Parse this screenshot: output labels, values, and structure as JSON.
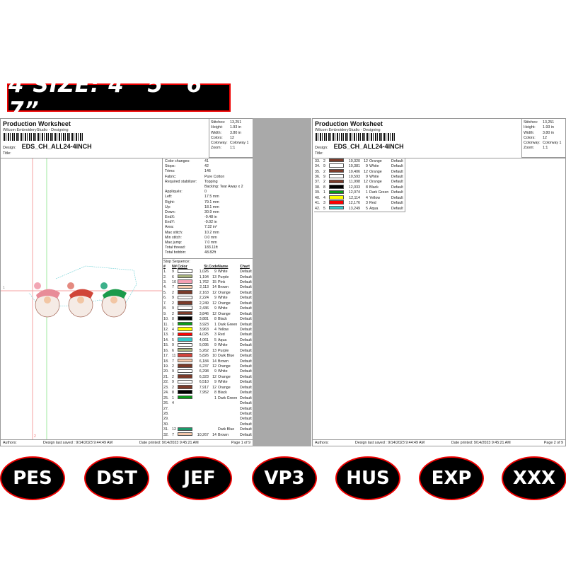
{
  "banner": "4 SIZE: 4” 5” 6” 7”",
  "formats": [
    "PES",
    "DST",
    "JEF",
    "VP3",
    "HUS",
    "EXP",
    "XXX"
  ],
  "worksheet": {
    "title": "Production Worksheet",
    "subtitle": "Wilcom EmbroideryStudio - Designing",
    "design_label": "Design:",
    "design_name": "EDS_CH_ALL24-4INCH",
    "title_label": "Title:"
  },
  "stats": [
    {
      "k": "Stitches:",
      "v": "13,251"
    },
    {
      "k": "Height:",
      "v": "1.93 in"
    },
    {
      "k": "Width:",
      "v": "3.80 in"
    },
    {
      "k": "Colors:",
      "v": "12"
    },
    {
      "k": "Colorway:",
      "v": "Colorway 1"
    },
    {
      "k": "Zoom:",
      "v": "1:1"
    }
  ],
  "info": [
    {
      "k": "Color changes:",
      "v": "41"
    },
    {
      "k": "Stops:",
      "v": "42"
    },
    {
      "k": "Trims:",
      "v": "146"
    },
    {
      "k": "Fabric:",
      "v": "Pure Cotton"
    },
    {
      "k": "Required stabilizer:",
      "v": "Topping"
    },
    {
      "k": "",
      "v": "Backing: Tear Away x 2"
    },
    {
      "k": "Appliqués:",
      "v": "0"
    },
    {
      "k": "Left:",
      "v": "17.5 mm"
    },
    {
      "k": "Right:",
      "v": "79.1 mm"
    },
    {
      "k": "Up:",
      "v": "18.1 mm"
    },
    {
      "k": "Down:",
      "v": "30.9 mm"
    },
    {
      "k": "EndX:",
      "v": "-0.48 in"
    },
    {
      "k": "EndY:",
      "v": "-0.02 in"
    },
    {
      "k": "Area:",
      "v": "7.32 in²"
    },
    {
      "k": "Max stitch:",
      "v": "10.2 mm"
    },
    {
      "k": "Min stitch:",
      "v": "0.0 mm"
    },
    {
      "k": "Max jump:",
      "v": "7.0 mm"
    },
    {
      "k": "Total thread:",
      "v": "183.11ft"
    },
    {
      "k": "Total bobbin:",
      "v": "48.82ft"
    }
  ],
  "stop_sequence": {
    "label": "Stop Sequence:",
    "headers": [
      "#",
      "N#",
      "Color",
      "St.",
      "Code",
      "Name",
      "Chart"
    ],
    "rows": [
      [
        "1.",
        "9",
        "#ffffff",
        "1,026",
        "9",
        "White",
        "Default"
      ],
      [
        "2.",
        "6",
        "#a9b47e",
        "1,194",
        "13",
        "Purple",
        "Default"
      ],
      [
        "3.",
        "10",
        "#f5a0b4",
        "1,762",
        "15",
        "Pink",
        "Default"
      ],
      [
        "4.",
        "7",
        "#f6c8aa",
        "2,113",
        "14",
        "Brown",
        "Default"
      ],
      [
        "5.",
        "2",
        "#7b3b2a",
        "2,163",
        "12",
        "Orange",
        "Default"
      ],
      [
        "6.",
        "9",
        "#ffffff",
        "2,224",
        "9",
        "White",
        "Default"
      ],
      [
        "7.",
        "2",
        "#7b3b2a",
        "2,249",
        "12",
        "Orange",
        "Default"
      ],
      [
        "8.",
        "9",
        "#ffffff",
        "2,436",
        "9",
        "White",
        "Default"
      ],
      [
        "9.",
        "2",
        "#7b3b2a",
        "3,846",
        "12",
        "Orange",
        "Default"
      ],
      [
        "10.",
        "8",
        "#000000",
        "3,881",
        "8",
        "Black",
        "Default"
      ],
      [
        "11.",
        "1",
        "#0a9a18",
        "3,923",
        "1",
        "Dark Green",
        "Default"
      ],
      [
        "12.",
        "4",
        "#ffff00",
        "3,963",
        "4",
        "Yellow",
        "Default"
      ],
      [
        "13.",
        "3",
        "#ff0000",
        "4,025",
        "3",
        "Red",
        "Default"
      ],
      [
        "14.",
        "5",
        "#33c7c9",
        "4,061",
        "5",
        "Aqua",
        "Default"
      ],
      [
        "15.",
        "9",
        "#ffffff",
        "5,095",
        "9",
        "White",
        "Default"
      ],
      [
        "16.",
        "6",
        "#a9b47e",
        "5,262",
        "13",
        "Purple",
        "Default"
      ],
      [
        "17.",
        "11",
        "#d2443c",
        "5,826",
        "10",
        "Dark Blue",
        "Default"
      ],
      [
        "18.",
        "7",
        "#f6c8aa",
        "6,184",
        "14",
        "Brown",
        "Default"
      ],
      [
        "19.",
        "2",
        "#7b3b2a",
        "6,237",
        "12",
        "Orange",
        "Default"
      ],
      [
        "20.",
        "9",
        "#ffffff",
        "6,298",
        "9",
        "White",
        "Default"
      ],
      [
        "21.",
        "2",
        "#7b3b2a",
        "6,323",
        "12",
        "Orange",
        "Default"
      ],
      [
        "22.",
        "9",
        "#ffffff",
        "6,510",
        "9",
        "White",
        "Default"
      ],
      [
        "23.",
        "2",
        "#7b3b2a",
        "7,917",
        "12",
        "Orange",
        "Default"
      ],
      [
        "24.",
        "8",
        "#000000",
        "7,952",
        "8",
        "Black",
        "Default"
      ],
      [
        "25.",
        "1",
        "#0a9a18",
        "",
        "1",
        "Dark Green",
        "Default"
      ],
      [
        "26.",
        "4",
        "",
        "",
        "",
        "",
        "Default"
      ],
      [
        "27.",
        "",
        "",
        "",
        "",
        "",
        "Default"
      ],
      [
        "28.",
        "",
        "",
        "",
        "",
        "",
        "Default"
      ],
      [
        "29.",
        "",
        "",
        "",
        "",
        "",
        "Default"
      ],
      [
        "30.",
        "",
        "",
        "",
        "",
        "",
        "Default"
      ],
      [
        "31.",
        "12",
        "#1a9a6a",
        "",
        "",
        "Dark Blue",
        "Default"
      ],
      [
        "32.",
        "7",
        "#f6c8aa",
        "10,267",
        "14",
        "Brown",
        "Default"
      ]
    ]
  },
  "stop_sequence_page2": [
    [
      "33.",
      "2",
      "#7b3b2a",
      "10,320",
      "12",
      "Orange",
      "Default"
    ],
    [
      "34.",
      "9",
      "#ffffff",
      "10,381",
      "9",
      "White",
      "Default"
    ],
    [
      "35.",
      "2",
      "#7b3b2a",
      "10,406",
      "12",
      "Orange",
      "Default"
    ],
    [
      "36.",
      "9",
      "#ffffff",
      "10,593",
      "9",
      "White",
      "Default"
    ],
    [
      "37.",
      "2",
      "#7b3b2a",
      "11,998",
      "12",
      "Orange",
      "Default"
    ],
    [
      "38.",
      "8",
      "#000000",
      "12,033",
      "8",
      "Black",
      "Default"
    ],
    [
      "39.",
      "1",
      "#0a9a18",
      "12,074",
      "1",
      "Dark Green",
      "Default"
    ],
    [
      "40.",
      "4",
      "#ffff00",
      "12,114",
      "4",
      "Yellow",
      "Default"
    ],
    [
      "41.",
      "3",
      "#ff0000",
      "12,176",
      "3",
      "Red",
      "Default"
    ],
    [
      "42.",
      "5",
      "#33c7c9",
      "13,249",
      "5",
      "Aqua",
      "Default"
    ]
  ],
  "footer": {
    "authors": "Authors:",
    "saved": "Design last saved : 9/14/2023 9:44:49 AM",
    "printed": "Date printed: 9/14/2023 9:45:21 AM",
    "page1": "Page 1 of 9",
    "page2": "Page 2 of 9"
  },
  "ruler_labels": [
    "1",
    "2"
  ]
}
